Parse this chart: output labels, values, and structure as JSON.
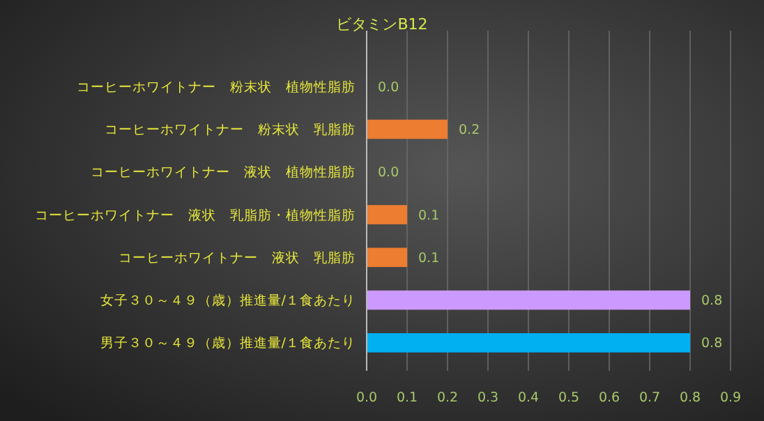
{
  "chart_data": {
    "type": "bar",
    "orientation": "horizontal",
    "title": "ビタミンB12",
    "categories": [
      "コーヒーホワイトナー　粉末状　植物性脂肪",
      "コーヒーホワイトナー　粉末状　乳脂肪",
      "コーヒーホワイトナー　液状　植物性脂肪",
      "コーヒーホワイトナー　液状　乳脂肪・植物性脂肪",
      "コーヒーホワイトナー　液状　乳脂肪",
      "女子３０～４９（歳）推進量/１食あたり",
      "男子３０～４９（歳）推進量/１食あたり"
    ],
    "values": [
      0,
      0.2,
      0,
      0.1,
      0.1,
      0.8,
      0.8
    ],
    "colors": [
      "#ed7d31",
      "#ed7d31",
      "#ed7d31",
      "#ed7d31",
      "#ed7d31",
      "#cc99ff",
      "#00b0f0"
    ],
    "value_labels": [
      "0.0",
      "0.2",
      "0.0",
      "0.1",
      "0.1",
      "0.8",
      "0.8"
    ],
    "xlim": [
      0,
      0.9
    ],
    "xticks": [
      {
        "value": 0,
        "label": "0.0"
      },
      {
        "value": 0.1,
        "label": "0.1"
      },
      {
        "value": 0.2,
        "label": "0.2"
      },
      {
        "value": 0.3,
        "label": "0.3"
      },
      {
        "value": 0.4,
        "label": "0.4"
      },
      {
        "value": 0.5,
        "label": "0.5"
      },
      {
        "value": 0.6,
        "label": "0.6"
      },
      {
        "value": 0.7,
        "label": "0.7"
      },
      {
        "value": 0.8,
        "label": "0.8"
      },
      {
        "value": 0.9,
        "label": "0.9"
      }
    ],
    "grid": "x"
  }
}
